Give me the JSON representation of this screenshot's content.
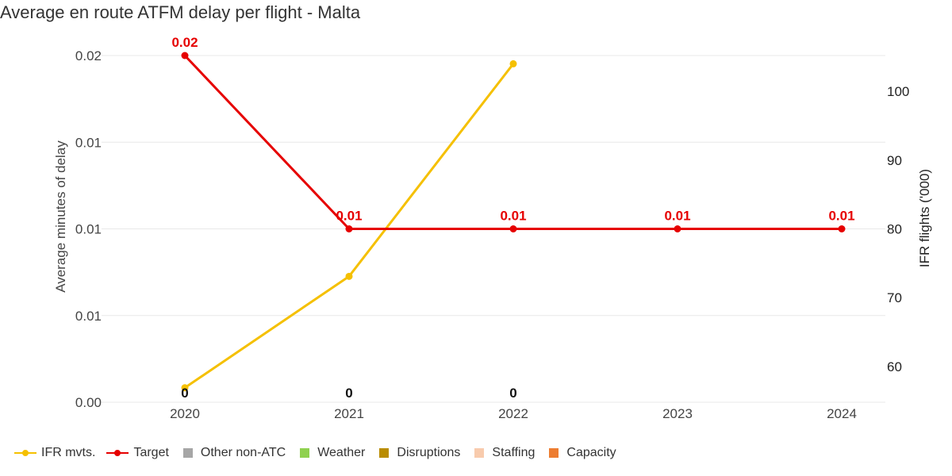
{
  "title": "Average en route ATFM delay per flight - Malta",
  "chart_data": {
    "type": "line",
    "title": "Average en route ATFM delay per flight - Malta",
    "x": [
      "2020",
      "2021",
      "2022",
      "2023",
      "2024"
    ],
    "left_axis": {
      "label": "Average minutes of delay",
      "tick_labels": [
        "0.00",
        "0.01",
        "0.01",
        "0.01",
        "0.02"
      ],
      "ticks": [
        0,
        0.005,
        0.01,
        0.015,
        0.02
      ],
      "range": [
        0,
        0.02
      ]
    },
    "right_axis": {
      "label": "IFR flights ('000)",
      "ticks": [
        60,
        70,
        80,
        90,
        100
      ],
      "range": [
        54.8,
        105.2
      ]
    },
    "series": [
      {
        "name": "IFR mvts.",
        "axis": "right",
        "color": "#f5c000",
        "values": [
          56.9,
          73.1,
          104.0,
          null,
          null
        ]
      },
      {
        "name": "Target",
        "axis": "left",
        "color": "#e60000",
        "values": [
          0.02,
          0.01,
          0.01,
          0.01,
          0.01
        ],
        "data_labels": [
          "0.02",
          "0.01",
          "0.01",
          "0.01",
          "0.01"
        ]
      }
    ],
    "bar_total_labels": [
      "0",
      "0",
      "0",
      "",
      ""
    ],
    "legend": [
      {
        "name": "IFR mvts.",
        "kind": "line",
        "color": "#f5c000"
      },
      {
        "name": "Target",
        "kind": "line",
        "color": "#e60000"
      },
      {
        "name": "Other non-ATC",
        "kind": "square",
        "color": "#a6a6a6"
      },
      {
        "name": "Weather",
        "kind": "square",
        "color": "#8fd14f"
      },
      {
        "name": "Disruptions",
        "kind": "square",
        "color": "#b98c00"
      },
      {
        "name": "Staffing",
        "kind": "square",
        "color": "#f8cbad"
      },
      {
        "name": "Capacity",
        "kind": "square",
        "color": "#ed7d31"
      }
    ],
    "legend_position": "bottom-left",
    "grid": true
  }
}
